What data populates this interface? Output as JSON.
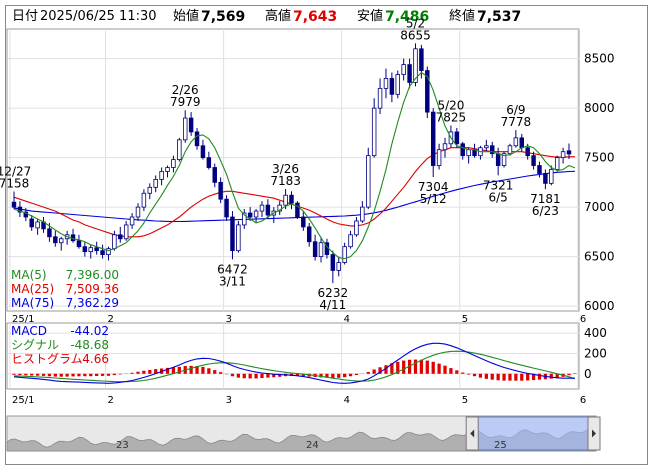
{
  "header": {
    "date_label": "日付",
    "datetime": "2025/06/25 11:30",
    "open_label": "始値",
    "open_value": "7,569",
    "high_label": "高値",
    "high_value": "7,643",
    "low_label": "安値",
    "low_value": "7,486",
    "close_label": "終値",
    "close_value": "7,537"
  },
  "colors": {
    "up": "#ffffff",
    "down": "#000080",
    "ma5": "#228B22",
    "ma25": "#e00000",
    "ma75": "#0000e0",
    "high": "#e00000",
    "low": "#008000"
  },
  "chart_data": [
    {
      "type": "candlestick",
      "ylim": [
        5950,
        8800
      ],
      "y_ticks": [
        6000,
        6500,
        7000,
        7500,
        8000,
        8500
      ],
      "x_ticks": [
        "25/1",
        "2",
        "3",
        "4",
        "5",
        "6"
      ],
      "candles": [
        [
          7050,
          7158,
          6980,
          7000
        ],
        [
          7000,
          7060,
          6900,
          6950
        ],
        [
          6950,
          6990,
          6860,
          6900
        ],
        [
          6880,
          6920,
          6760,
          6800
        ],
        [
          6790,
          6880,
          6720,
          6850
        ],
        [
          6850,
          6900,
          6740,
          6780
        ],
        [
          6780,
          6840,
          6650,
          6700
        ],
        [
          6700,
          6760,
          6600,
          6640
        ],
        [
          6640,
          6700,
          6560,
          6680
        ],
        [
          6680,
          6760,
          6620,
          6720
        ],
        [
          6720,
          6780,
          6640,
          6660
        ],
        [
          6660,
          6720,
          6580,
          6600
        ],
        [
          6600,
          6650,
          6500,
          6550
        ],
        [
          6550,
          6620,
          6480,
          6590
        ],
        [
          6590,
          6650,
          6520,
          6560
        ],
        [
          6560,
          6620,
          6480,
          6520
        ],
        [
          6520,
          6600,
          6460,
          6580
        ],
        [
          6580,
          6760,
          6560,
          6720
        ],
        [
          6720,
          6800,
          6640,
          6680
        ],
        [
          6680,
          6860,
          6660,
          6820
        ],
        [
          6820,
          6940,
          6780,
          6900
        ],
        [
          6900,
          7040,
          6860,
          7000
        ],
        [
          7000,
          7180,
          6960,
          7140
        ],
        [
          7140,
          7240,
          7080,
          7200
        ],
        [
          7200,
          7320,
          7150,
          7280
        ],
        [
          7280,
          7400,
          7220,
          7360
        ],
        [
          7360,
          7420,
          7300,
          7400
        ],
        [
          7400,
          7520,
          7350,
          7480
        ],
        [
          7480,
          7700,
          7460,
          7680
        ],
        [
          7680,
          7979,
          7650,
          7900
        ],
        [
          7900,
          7960,
          7720,
          7760
        ],
        [
          7760,
          7800,
          7580,
          7620
        ],
        [
          7620,
          7680,
          7480,
          7500
        ],
        [
          7500,
          7560,
          7380,
          7400
        ],
        [
          7400,
          7440,
          7200,
          7250
        ],
        [
          7250,
          7300,
          7040,
          7080
        ],
        [
          7080,
          7120,
          6860,
          6900
        ],
        [
          6900,
          6960,
          6472,
          6560
        ],
        [
          6560,
          6860,
          6540,
          6820
        ],
        [
          6820,
          6980,
          6780,
          6940
        ],
        [
          6940,
          7000,
          6860,
          6900
        ],
        [
          6900,
          6980,
          6840,
          6960
        ],
        [
          6960,
          7060,
          6900,
          7020
        ],
        [
          7020,
          7080,
          6880,
          6920
        ],
        [
          6920,
          7000,
          6840,
          6960
        ],
        [
          6960,
          7060,
          6920,
          7020
        ],
        [
          7020,
          7183,
          6980,
          7120
        ],
        [
          7120,
          7160,
          6980,
          7040
        ],
        [
          7040,
          7060,
          6880,
          6900
        ],
        [
          6900,
          6960,
          6760,
          6800
        ],
        [
          6800,
          6840,
          6600,
          6650
        ],
        [
          6650,
          6720,
          6460,
          6500
        ],
        [
          6500,
          6700,
          6440,
          6640
        ],
        [
          6640,
          6680,
          6480,
          6520
        ],
        [
          6520,
          6560,
          6232,
          6360
        ],
        [
          6360,
          6500,
          6300,
          6440
        ],
        [
          6440,
          6640,
          6420,
          6600
        ],
        [
          6600,
          6760,
          6580,
          6720
        ],
        [
          6720,
          6900,
          6700,
          6860
        ],
        [
          6860,
          7060,
          6840,
          7000
        ],
        [
          7000,
          7600,
          6980,
          7520
        ],
        [
          7520,
          8100,
          7500,
          8000
        ],
        [
          8000,
          8300,
          7940,
          8200
        ],
        [
          8200,
          8400,
          8100,
          8300
        ],
        [
          8300,
          8360,
          8060,
          8140
        ],
        [
          8140,
          8380,
          8100,
          8340
        ],
        [
          8340,
          8500,
          8280,
          8440
        ],
        [
          8440,
          8500,
          8200,
          8260
        ],
        [
          8260,
          8655,
          8220,
          8600
        ],
        [
          8600,
          8640,
          8300,
          8380
        ],
        [
          8380,
          8420,
          7900,
          7960
        ],
        [
          7960,
          8000,
          7304,
          7420
        ],
        [
          7420,
          7640,
          7380,
          7580
        ],
        [
          7580,
          7700,
          7500,
          7640
        ],
        [
          7640,
          7825,
          7600,
          7760
        ],
        [
          7760,
          7800,
          7600,
          7640
        ],
        [
          7640,
          7660,
          7480,
          7520
        ],
        [
          7520,
          7600,
          7440,
          7580
        ],
        [
          7580,
          7640,
          7500,
          7520
        ],
        [
          7520,
          7620,
          7480,
          7600
        ],
        [
          7600,
          7680,
          7560,
          7620
        ],
        [
          7620,
          7660,
          7500,
          7540
        ],
        [
          7540,
          7600,
          7321,
          7420
        ],
        [
          7420,
          7560,
          7400,
          7540
        ],
        [
          7540,
          7640,
          7520,
          7620
        ],
        [
          7620,
          7778,
          7600,
          7700
        ],
        [
          7700,
          7740,
          7560,
          7600
        ],
        [
          7600,
          7640,
          7480,
          7520
        ],
        [
          7520,
          7560,
          7380,
          7420
        ],
        [
          7420,
          7460,
          7300,
          7340
        ],
        [
          7340,
          7380,
          7181,
          7240
        ],
        [
          7240,
          7420,
          7220,
          7380
        ],
        [
          7380,
          7520,
          7360,
          7500
        ],
        [
          7500,
          7600,
          7440,
          7560
        ],
        [
          7569,
          7643,
          7486,
          7537
        ]
      ],
      "ma5": [
        6980,
        6960,
        6940,
        6910,
        6880,
        6850,
        6810,
        6770,
        6730,
        6700,
        6680,
        6670,
        6650,
        6620,
        6600,
        6580,
        6560,
        6580,
        6610,
        6640,
        6700,
        6760,
        6840,
        6940,
        7030,
        7120,
        7220,
        7310,
        7420,
        7560,
        7660,
        7720,
        7730,
        7690,
        7600,
        7470,
        7330,
        7150,
        6990,
        6920,
        6880,
        6840,
        6860,
        6900,
        6940,
        6970,
        7010,
        7030,
        7010,
        6960,
        6880,
        6790,
        6690,
        6600,
        6540,
        6490,
        6480,
        6500,
        6560,
        6660,
        6800,
        6960,
        7160,
        7380,
        7640,
        7860,
        8060,
        8220,
        8300,
        8360,
        8320,
        8180,
        8000,
        7820,
        7700,
        7620,
        7600,
        7580,
        7580,
        7560,
        7560,
        7560,
        7540,
        7520,
        7530,
        7560,
        7600,
        7620,
        7600,
        7540,
        7460,
        7400,
        7370,
        7380,
        7420,
        7396
      ],
      "ma25": [
        7100,
        7080,
        7060,
        7040,
        7020,
        7000,
        6980,
        6960,
        6930,
        6900,
        6870,
        6850,
        6820,
        6800,
        6780,
        6760,
        6740,
        6720,
        6710,
        6700,
        6700,
        6700,
        6710,
        6730,
        6760,
        6790,
        6820,
        6860,
        6900,
        6950,
        7000,
        7040,
        7080,
        7110,
        7130,
        7150,
        7160,
        7160,
        7150,
        7140,
        7130,
        7120,
        7110,
        7100,
        7090,
        7070,
        7050,
        7030,
        7010,
        6990,
        6970,
        6940,
        6910,
        6880,
        6850,
        6830,
        6820,
        6810,
        6810,
        6820,
        6840,
        6880,
        6930,
        6990,
        7060,
        7130,
        7200,
        7280,
        7360,
        7430,
        7490,
        7530,
        7560,
        7580,
        7600,
        7600,
        7600,
        7600,
        7590,
        7580,
        7570,
        7560,
        7560,
        7560,
        7560,
        7560,
        7560,
        7550,
        7540,
        7530,
        7520,
        7510,
        7505,
        7505,
        7508,
        7509
      ],
      "ma75": [
        6990,
        6980,
        6970,
        6960,
        6955,
        6950,
        6945,
        6940,
        6935,
        6930,
        6925,
        6920,
        6915,
        6910,
        6905,
        6900,
        6895,
        6890,
        6885,
        6880,
        6876,
        6872,
        6868,
        6864,
        6860,
        6858,
        6856,
        6855,
        6855,
        6856,
        6858,
        6860,
        6862,
        6864,
        6866,
        6868,
        6870,
        6872,
        6874,
        6876,
        6878,
        6880,
        6882,
        6884,
        6886,
        6888,
        6890,
        6892,
        6894,
        6896,
        6898,
        6900,
        6902,
        6904,
        6906,
        6908,
        6910,
        6914,
        6918,
        6924,
        6932,
        6942,
        6954,
        6968,
        6984,
        7000,
        7018,
        7036,
        7054,
        7072,
        7090,
        7108,
        7126,
        7144,
        7160,
        7176,
        7190,
        7204,
        7218,
        7230,
        7242,
        7254,
        7264,
        7274,
        7284,
        7294,
        7304,
        7314,
        7322,
        7330,
        7338,
        7346,
        7352,
        7356,
        7360,
        7362
      ],
      "annotations": [
        {
          "idx": 0,
          "date": "12/27",
          "value": "7158",
          "pos": "above"
        },
        {
          "idx": 29,
          "date": "2/26",
          "value": "7979",
          "pos": "above"
        },
        {
          "idx": 37,
          "date": "3/11",
          "value": "6472",
          "pos": "below"
        },
        {
          "idx": 46,
          "date": "3/26",
          "value": "7183",
          "pos": "above"
        },
        {
          "idx": 54,
          "date": "4/11",
          "value": "6232",
          "pos": "below"
        },
        {
          "idx": 68,
          "date": "5/2",
          "value": "8655",
          "pos": "above"
        },
        {
          "idx": 71,
          "date": "5/12",
          "value": "7304",
          "pos": "below"
        },
        {
          "idx": 74,
          "date": "5/20",
          "value": "7825",
          "pos": "above"
        },
        {
          "idx": 82,
          "date": "6/5",
          "value": "7321",
          "pos": "below"
        },
        {
          "idx": 85,
          "date": "6/9",
          "value": "7778",
          "pos": "above"
        },
        {
          "idx": 90,
          "date": "6/23",
          "value": "7181",
          "pos": "below"
        }
      ],
      "legend": [
        {
          "name": "MA(5)",
          "value": "7,396.00"
        },
        {
          "name": "MA(25)",
          "value": "7,509.36"
        },
        {
          "name": "MA(75)",
          "value": "7,362.29"
        }
      ]
    },
    {
      "type": "macd",
      "ylim": [
        -150,
        500
      ],
      "y_ticks": [
        0,
        200,
        400
      ],
      "x_ticks": [
        "25/1",
        "2",
        "3",
        "4",
        "5",
        "6"
      ],
      "macd": [
        -30,
        -35,
        -40,
        -45,
        -50,
        -55,
        -62,
        -70,
        -75,
        -78,
        -80,
        -82,
        -85,
        -88,
        -90,
        -92,
        -94,
        -90,
        -84,
        -76,
        -66,
        -52,
        -36,
        -18,
        2,
        22,
        44,
        64,
        86,
        112,
        132,
        146,
        152,
        150,
        140,
        124,
        104,
        80,
        58,
        42,
        28,
        16,
        8,
        2,
        -4,
        -8,
        -10,
        -14,
        -20,
        -28,
        -38,
        -50,
        -62,
        -74,
        -86,
        -92,
        -94,
        -90,
        -82,
        -70,
        -52,
        -20,
        16,
        54,
        96,
        136,
        176,
        214,
        246,
        272,
        290,
        300,
        300,
        292,
        276,
        256,
        232,
        206,
        180,
        154,
        128,
        104,
        82,
        62,
        46,
        30,
        16,
        4,
        -6,
        -16,
        -26,
        -34,
        -40,
        -44,
        -44,
        -44
      ],
      "signal": [
        -20,
        -22,
        -25,
        -28,
        -31,
        -34,
        -38,
        -42,
        -46,
        -50,
        -54,
        -57,
        -61,
        -64,
        -68,
        -71,
        -74,
        -77,
        -78,
        -78,
        -76,
        -72,
        -66,
        -56,
        -44,
        -30,
        -14,
        2,
        18,
        36,
        54,
        70,
        84,
        96,
        104,
        108,
        108,
        104,
        96,
        86,
        74,
        62,
        50,
        40,
        30,
        22,
        14,
        8,
        2,
        -4,
        -10,
        -18,
        -26,
        -34,
        -44,
        -52,
        -60,
        -66,
        -70,
        -72,
        -70,
        -62,
        -48,
        -30,
        -8,
        18,
        46,
        76,
        106,
        134,
        160,
        182,
        200,
        212,
        220,
        222,
        220,
        214,
        204,
        192,
        178,
        162,
        146,
        130,
        114,
        98,
        84,
        70,
        56,
        42,
        28,
        14,
        0,
        -14,
        -30,
        -48.68
      ],
      "histogram": [
        -10,
        -13,
        -15,
        -17,
        -19,
        -21,
        -24,
        -28,
        -29,
        -28,
        -26,
        -25,
        -24,
        -24,
        -22,
        -21,
        -20,
        -13,
        -6,
        2,
        10,
        20,
        30,
        38,
        46,
        52,
        58,
        62,
        68,
        76,
        78,
        76,
        68,
        54,
        36,
        16,
        -4,
        -24,
        -38,
        -44,
        -46,
        -46,
        -42,
        -38,
        -34,
        -30,
        -24,
        -22,
        -22,
        -24,
        -28,
        -32,
        -36,
        -40,
        -42,
        -40,
        -34,
        -24,
        -12,
        2,
        18,
        42,
        64,
        84,
        104,
        118,
        130,
        138,
        140,
        138,
        130,
        118,
        100,
        80,
        56,
        34,
        12,
        -8,
        -24,
        -38,
        -50,
        -58,
        -64,
        -68,
        -68,
        -68,
        -68,
        -66,
        -62,
        -58,
        -54,
        -48,
        -40,
        -30,
        -14,
        4.66
      ],
      "legend": [
        {
          "name": "MACD",
          "value": "-44.02"
        },
        {
          "name": "シグナル",
          "value": "-48.68"
        },
        {
          "name": "ヒストグラム",
          "value": "4.66"
        }
      ]
    },
    {
      "type": "area",
      "x_ticks": [
        "23",
        "24",
        "25"
      ],
      "selection": [
        0.8,
        1.0
      ]
    }
  ]
}
